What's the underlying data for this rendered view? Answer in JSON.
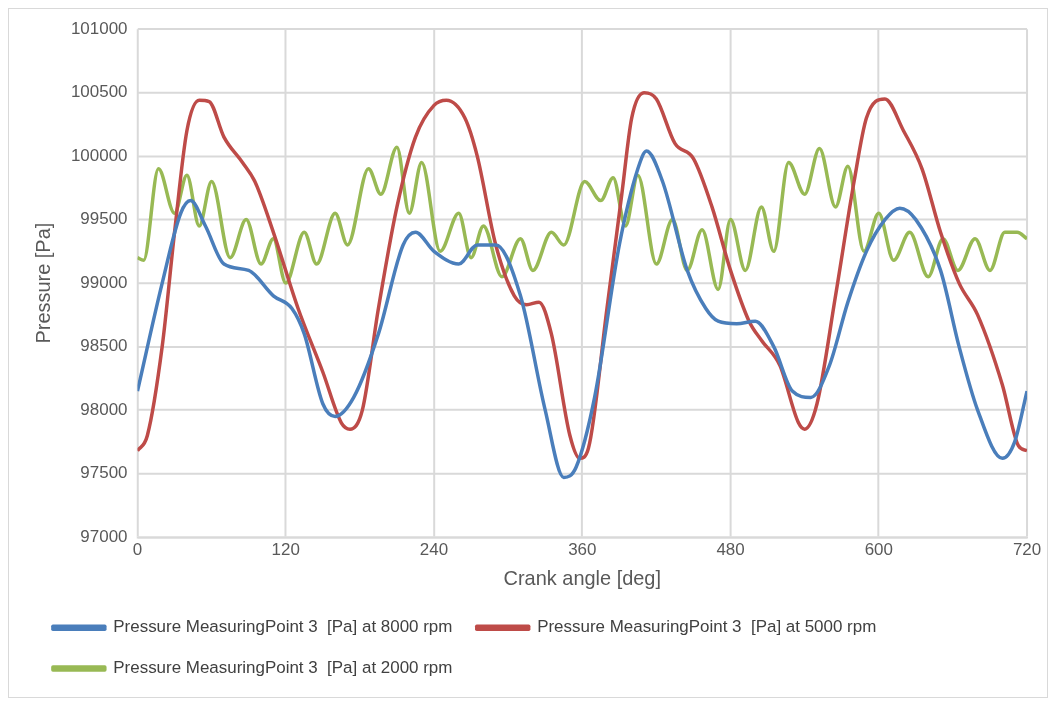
{
  "chart_data": {
    "type": "line",
    "xlabel": "Crank angle [deg]",
    "ylabel": "Pressure [Pa]",
    "xlim": [
      0,
      720
    ],
    "xticks": [
      0,
      120,
      240,
      360,
      480,
      600,
      720
    ],
    "ylim": [
      97000,
      101000
    ],
    "yticks": [
      97000,
      97500,
      98000,
      98500,
      99000,
      99500,
      100000,
      100500,
      101000
    ],
    "grid": true,
    "legend": "bottom",
    "marker": "none",
    "line_style": "solid",
    "series": [
      {
        "name": "Pressure MeasuringPoint 3  [Pa] at 8000 rpm",
        "color": "#4a7ebb",
        "x": [
          0,
          20,
          35,
          43,
          55,
          70,
          90,
          110,
          125,
          135,
          150,
          160,
          175,
          195,
          215,
          225,
          240,
          260,
          275,
          290,
          310,
          330,
          345,
          355,
          370,
          390,
          405,
          412,
          425,
          445,
          460,
          470,
          485,
          500,
          515,
          530,
          545,
          560,
          575,
          590,
          605,
          617,
          630,
          650,
          665,
          680,
          700,
          710,
          720
        ],
        "values": [
          98150,
          99000,
          99550,
          99650,
          99450,
          99150,
          99100,
          98900,
          98800,
          98600,
          98050,
          97950,
          98100,
          98600,
          99300,
          99400,
          99250,
          99150,
          99300,
          99300,
          98900,
          98000,
          97470,
          97550,
          98100,
          99300,
          99900,
          100040,
          99800,
          99100,
          98800,
          98700,
          98680,
          98700,
          98500,
          98150,
          98100,
          98350,
          98850,
          99250,
          99500,
          99590,
          99500,
          99100,
          98500,
          98000,
          97620,
          97750,
          98150
        ]
      },
      {
        "name": "Pressure MeasuringPoint 3  [Pa] at 5000 rpm",
        "color": "#be4b48",
        "x": [
          0,
          8,
          20,
          30,
          40,
          50,
          58,
          70,
          85,
          95,
          110,
          130,
          150,
          165,
          172,
          182,
          195,
          210,
          225,
          240,
          250,
          265,
          275,
          290,
          305,
          315,
          325,
          335,
          350,
          358,
          365,
          380,
          392,
          400,
          410,
          420,
          435,
          450,
          465,
          480,
          495,
          505,
          520,
          535,
          540,
          550,
          565,
          580,
          590,
          605,
          620,
          635,
          650,
          665,
          680,
          700,
          713,
          720
        ],
        "values": [
          97680,
          97800,
          98500,
          99400,
          100200,
          100440,
          100430,
          100150,
          99950,
          99800,
          99400,
          98800,
          98300,
          97900,
          97850,
          98000,
          98800,
          99600,
          100150,
          100400,
          100440,
          100300,
          100000,
          99300,
          98900,
          98830,
          98850,
          98600,
          97800,
          97620,
          97700,
          98800,
          99700,
          100300,
          100500,
          100450,
          100100,
          99980,
          99600,
          99100,
          98700,
          98550,
          98350,
          97900,
          97850,
          98050,
          98900,
          99800,
          100300,
          100450,
          100200,
          99900,
          99400,
          99000,
          98750,
          98200,
          97720,
          97680
        ]
      },
      {
        "name": "Pressure MeasuringPoint 3  [Pa] at 2000 rpm",
        "color": "#98b954",
        "x": [
          0,
          5,
          17,
          30,
          40,
          50,
          60,
          75,
          88,
          100,
          110,
          120,
          135,
          145,
          160,
          170,
          187,
          197,
          210,
          220,
          230,
          245,
          260,
          270,
          280,
          295,
          310,
          320,
          335,
          345,
          362,
          375,
          385,
          395,
          405,
          420,
          433,
          445,
          457,
          470,
          480,
          492,
          505,
          515,
          527,
          540,
          552,
          565,
          575,
          588,
          600,
          612,
          625,
          640,
          652,
          664,
          678,
          690,
          702,
          712,
          720
        ],
        "values": [
          99200,
          99180,
          99900,
          99550,
          99850,
          99450,
          99800,
          99200,
          99500,
          99150,
          99350,
          99000,
          99400,
          99150,
          99550,
          99300,
          99900,
          99700,
          100070,
          99550,
          99950,
          99250,
          99550,
          99200,
          99450,
          99050,
          99350,
          99100,
          99400,
          99300,
          99800,
          99650,
          99830,
          99450,
          99850,
          99150,
          99500,
          99100,
          99420,
          98950,
          99500,
          99100,
          99600,
          99250,
          99950,
          99700,
          100060,
          99600,
          99920,
          99250,
          99550,
          99180,
          99400,
          99050,
          99350,
          99100,
          99350,
          99100,
          99400,
          99400,
          99350
        ]
      }
    ]
  }
}
